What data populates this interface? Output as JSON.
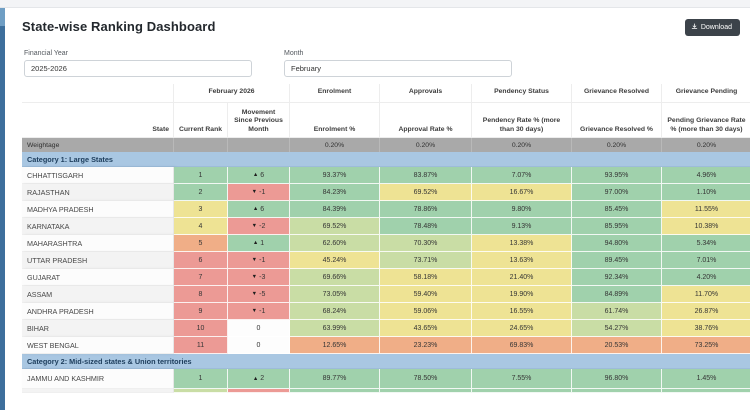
{
  "page": {
    "title": "State-wise Ranking Dashboard"
  },
  "toolbar": {
    "download_label": "Download"
  },
  "filters": {
    "financial_year_label": "Financial Year",
    "financial_year_value": "2025-2026",
    "month_label": "Month",
    "month_value": "February"
  },
  "table": {
    "group_headers": [
      "February 2026",
      "Enrolment",
      "Approvals",
      "Pendency Status",
      "Grievance Resolved",
      "Grievance Pending"
    ],
    "column_headers": [
      "State",
      "Current Rank",
      "Movement Since Previous Month",
      "Enrolment %",
      "Approval Rate %",
      "Pendency Rate % (more than 30 days)",
      "Grievance Resolved %",
      "Pending Grievance Rate % (more than 30 days)"
    ],
    "weightage_label": "Weightage",
    "weightage_values": [
      "0.20%",
      "0.20%",
      "0.20%",
      "0.20%",
      "0.20%"
    ],
    "sections": [
      {
        "label": "Category 1: Large States",
        "rows": [
          {
            "state": "CHHATTISGARH",
            "rank": "1",
            "rank_color": "g",
            "movement": {
              "dir": "up",
              "text": "6",
              "color": "g"
            },
            "metrics": [
              [
                "93.37%",
                "g"
              ],
              [
                "83.87%",
                "g"
              ],
              [
                "7.07%",
                "g"
              ],
              [
                "93.95%",
                "g"
              ],
              [
                "4.96%",
                "g"
              ]
            ]
          },
          {
            "state": "RAJASTHAN",
            "rank": "2",
            "rank_color": "g",
            "movement": {
              "dir": "down",
              "text": "-1",
              "color": "r"
            },
            "metrics": [
              [
                "84.23%",
                "g"
              ],
              [
                "69.52%",
                "y"
              ],
              [
                "16.67%",
                "y"
              ],
              [
                "97.00%",
                "g"
              ],
              [
                "1.10%",
                "g"
              ]
            ]
          },
          {
            "state": "MADHYA PRADESH",
            "rank": "3",
            "rank_color": "y",
            "movement": {
              "dir": "up",
              "text": "6",
              "color": "g"
            },
            "metrics": [
              [
                "84.39%",
                "g"
              ],
              [
                "78.86%",
                "g"
              ],
              [
                "9.80%",
                "g"
              ],
              [
                "85.45%",
                "g"
              ],
              [
                "11.55%",
                "y"
              ]
            ]
          },
          {
            "state": "KARNATAKA",
            "rank": "4",
            "rank_color": "y",
            "movement": {
              "dir": "down",
              "text": "-2",
              "color": "r"
            },
            "metrics": [
              [
                "69.52%",
                "gy"
              ],
              [
                "78.48%",
                "g"
              ],
              [
                "9.13%",
                "g"
              ],
              [
                "85.95%",
                "g"
              ],
              [
                "10.38%",
                "y"
              ]
            ]
          },
          {
            "state": "MAHARASHTRA",
            "rank": "5",
            "rank_color": "o",
            "movement": {
              "dir": "up",
              "text": "1",
              "color": "g"
            },
            "metrics": [
              [
                "62.60%",
                "gy"
              ],
              [
                "70.30%",
                "gy"
              ],
              [
                "13.38%",
                "y"
              ],
              [
                "94.80%",
                "g"
              ],
              [
                "5.34%",
                "g"
              ]
            ]
          },
          {
            "state": "UTTAR PRADESH",
            "rank": "6",
            "rank_color": "r",
            "movement": {
              "dir": "down",
              "text": "-1",
              "color": "r"
            },
            "metrics": [
              [
                "45.24%",
                "y"
              ],
              [
                "73.71%",
                "gy"
              ],
              [
                "13.63%",
                "y"
              ],
              [
                "89.45%",
                "g"
              ],
              [
                "7.01%",
                "g"
              ]
            ]
          },
          {
            "state": "GUJARAT",
            "rank": "7",
            "rank_color": "r",
            "movement": {
              "dir": "down",
              "text": "-3",
              "color": "r"
            },
            "metrics": [
              [
                "69.66%",
                "gy"
              ],
              [
                "58.18%",
                "y"
              ],
              [
                "21.40%",
                "y"
              ],
              [
                "92.34%",
                "g"
              ],
              [
                "4.20%",
                "g"
              ]
            ]
          },
          {
            "state": "ASSAM",
            "rank": "8",
            "rank_color": "r",
            "movement": {
              "dir": "down",
              "text": "-5",
              "color": "r"
            },
            "metrics": [
              [
                "73.05%",
                "gy"
              ],
              [
                "59.40%",
                "y"
              ],
              [
                "19.90%",
                "y"
              ],
              [
                "84.89%",
                "g"
              ],
              [
                "11.70%",
                "y"
              ]
            ]
          },
          {
            "state": "ANDHRA PRADESH",
            "rank": "9",
            "rank_color": "r",
            "movement": {
              "dir": "down",
              "text": "-1",
              "color": "r"
            },
            "metrics": [
              [
                "68.24%",
                "gy"
              ],
              [
                "59.06%",
                "y"
              ],
              [
                "16.55%",
                "y"
              ],
              [
                "61.74%",
                "gy"
              ],
              [
                "26.87%",
                "y"
              ]
            ]
          },
          {
            "state": "BIHAR",
            "rank": "10",
            "rank_color": "r",
            "movement": {
              "dir": "none",
              "text": "0",
              "color": "w"
            },
            "metrics": [
              [
                "63.99%",
                "gy"
              ],
              [
                "43.65%",
                "y"
              ],
              [
                "24.65%",
                "y"
              ],
              [
                "54.27%",
                "gy"
              ],
              [
                "38.76%",
                "y"
              ]
            ]
          },
          {
            "state": "WEST BENGAL",
            "rank": "11",
            "rank_color": "r",
            "movement": {
              "dir": "none",
              "text": "0",
              "color": "w"
            },
            "metrics": [
              [
                "12.65%",
                "o"
              ],
              [
                "23.23%",
                "o"
              ],
              [
                "69.83%",
                "o"
              ],
              [
                "20.53%",
                "o"
              ],
              [
                "73.25%",
                "o"
              ]
            ]
          }
        ]
      },
      {
        "label": "Category 2: Mid-sized states & Union territories",
        "rows": [
          {
            "state": "JAMMU AND KASHMIR",
            "rank": "1",
            "rank_color": "g",
            "movement": {
              "dir": "up",
              "text": "2",
              "color": "g"
            },
            "metrics": [
              [
                "89.77%",
                "g"
              ],
              [
                "78.50%",
                "g"
              ],
              [
                "7.55%",
                "g"
              ],
              [
                "96.80%",
                "g"
              ],
              [
                "1.45%",
                "g"
              ]
            ]
          }
        ]
      }
    ],
    "partial_row_colors": [
      "w",
      "gy",
      "r",
      "g",
      "g",
      "g",
      "g",
      "g"
    ]
  },
  "colors": {
    "green": "#a0d1ac",
    "light_green": "#c9dda5",
    "yellow": "#eee394",
    "orange": "#f0ae87",
    "red": "#ec9a95",
    "weightage_gray": "#a9a9a9",
    "category_blue": "#a9c7e2",
    "sidebar_blue": "#3d6f9c",
    "button_dark": "#3c434a"
  }
}
